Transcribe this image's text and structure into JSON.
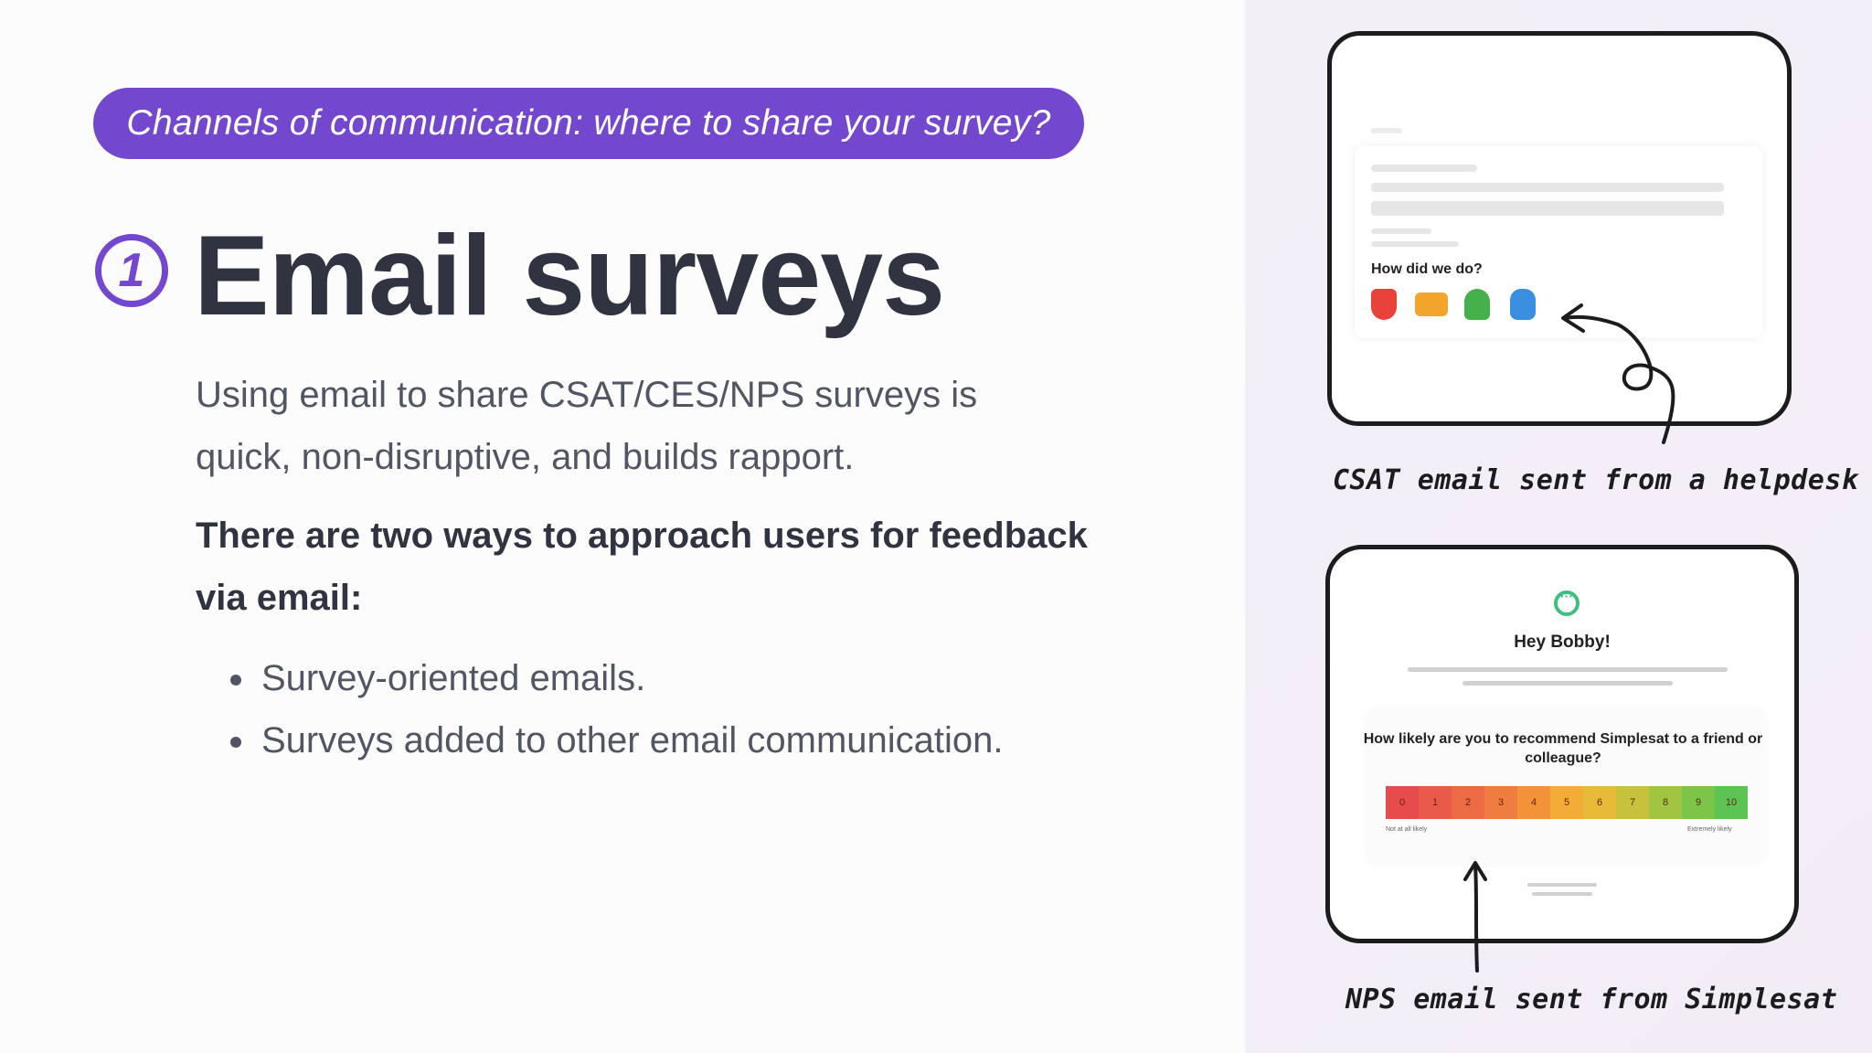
{
  "header_pill": "Channels of communication: where to share your survey?",
  "section_number": "1",
  "title": "Email surveys",
  "intro": "Using email to share CSAT/CES/NPS surveys is quick, non-disruptive, and builds rapport.",
  "subhead": "There are two ways to approach users for feedback via email:",
  "bullets": [
    "Survey-oriented emails.",
    "Surveys added to other email communication."
  ],
  "csat_mock": {
    "question": "How did we do?",
    "caption": "CSAT email sent from a helpdesk",
    "face_colors": [
      "#e8413a",
      "#f2a42b",
      "#46b04a",
      "#3a8fe0"
    ]
  },
  "nps_mock": {
    "greeting": "Hey Bobby!",
    "question": "How likely are you to recommend Simplesat to a friend or colleague?",
    "scale": [
      "0",
      "1",
      "2",
      "3",
      "4",
      "5",
      "6",
      "7",
      "8",
      "9",
      "10"
    ],
    "scale_colors": [
      "#e74c4c",
      "#ea5a48",
      "#ec6a44",
      "#ef7d3f",
      "#f2933a",
      "#f5ab37",
      "#e7bb38",
      "#c6c23c",
      "#a1c441",
      "#7dc548",
      "#5bc452"
    ],
    "left_label": "Not at all likely",
    "right_label": "Extremely likely",
    "caption": "NPS email sent from Simplesat"
  },
  "colors": {
    "accent": "#7447cf",
    "title": "#2f3440",
    "body": "#505663"
  }
}
